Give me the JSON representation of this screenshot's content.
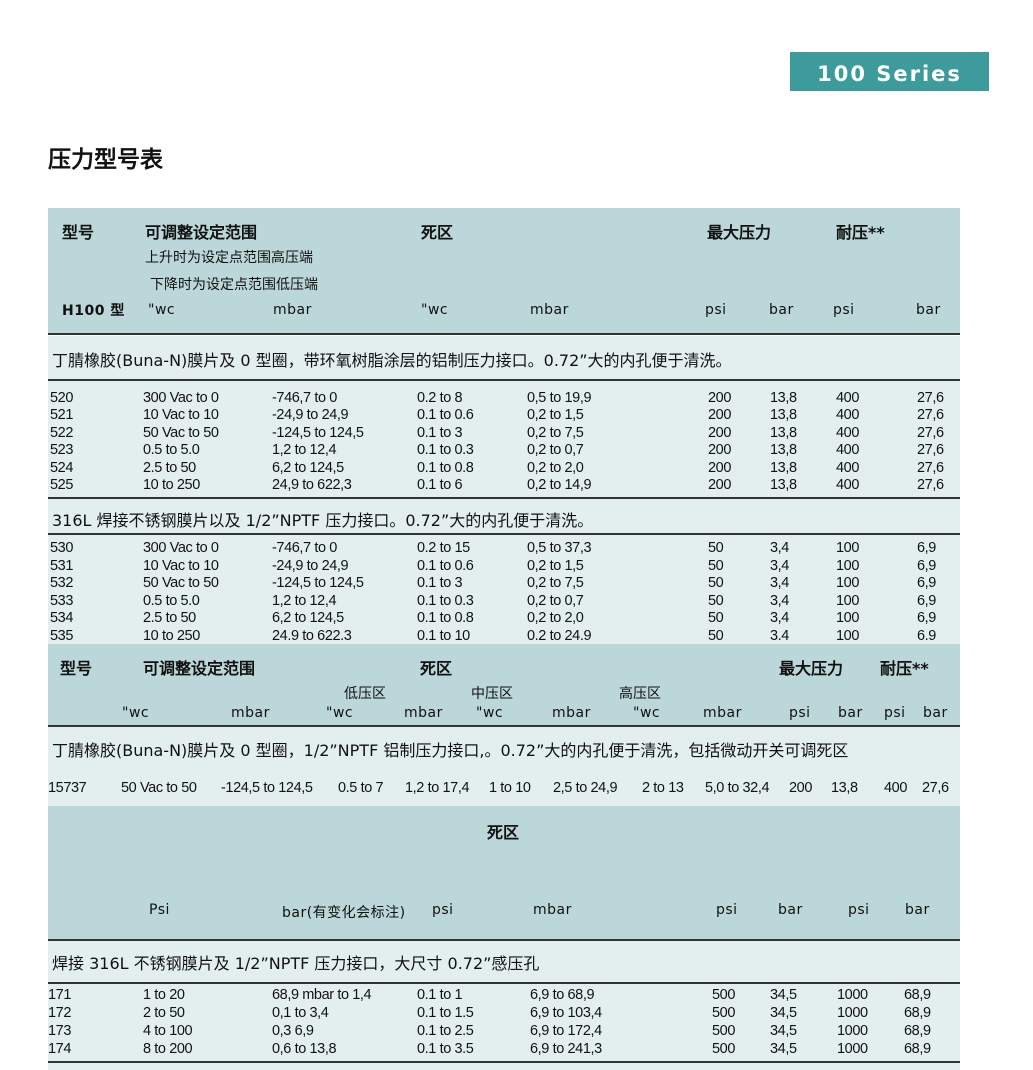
{
  "badge": "100 Series",
  "title": "压力型号表",
  "t1": {
    "h_model": "型号",
    "h_range": "可调整设定范围",
    "h_range_sub1": "上升时为设定点范围高压端",
    "h_range_sub2": "下降时为设定点范围低压端",
    "h_deadband": "死区",
    "h_maxp": "最大压力",
    "h_proof": "耐压**",
    "units": [
      "H100 型",
      "\"wc",
      "mbar",
      "\"wc",
      "mbar",
      "psi",
      "bar",
      "psi",
      "bar"
    ],
    "desc1": "丁腈橡胶(Buna-N)膜片及 0 型圈，带环氧树脂涂层的铝制压力接口。0.72”大的内孔便于清洗。",
    "rows1": [
      [
        "520",
        "300 Vac to 0",
        "-746,7 to 0",
        "0.2 to 8",
        "0,5 to 19,9",
        "200",
        "13,8",
        "400",
        "27,6"
      ],
      [
        "521",
        "10 Vac to 10",
        "-24,9 to 24,9",
        "0.1 to 0.6",
        "0,2 to 1,5",
        "200",
        "13,8",
        "400",
        "27,6"
      ],
      [
        "522",
        "50 Vac to 50",
        "-124,5 to 124,5",
        "0.1 to 3",
        "0,2 to 7,5",
        "200",
        "13,8",
        "400",
        "27,6"
      ],
      [
        "523",
        "0.5 to 5.0",
        "1,2 to 12,4",
        "0.1 to 0.3",
        "0,2 to 0,7",
        "200",
        "13,8",
        "400",
        "27,6"
      ],
      [
        "524",
        "2.5 to 50",
        "6,2 to 124,5",
        "0.1 to 0.8",
        "0,2 to 2,0",
        "200",
        "13,8",
        "400",
        "27,6"
      ],
      [
        "525",
        "10 to 250",
        "24,9 to 622,3",
        "0.1 to 6",
        "0,2 to 14,9",
        "200",
        "13,8",
        "400",
        "27,6"
      ]
    ],
    "desc2": "316L 焊接不锈钢膜片以及 1/2”NPTF 压力接口。0.72”大的内孔便于清洗。",
    "rows2": [
      [
        "530",
        "300 Vac to 0",
        "-746,7 to 0",
        "0.2 to 15",
        "0,5 to 37,3",
        "50",
        "3,4",
        "100",
        "6,9"
      ],
      [
        "531",
        "10 Vac to 10",
        "-24,9 to 24,9",
        "0.1 to 0.6",
        "0,2 to 1,5",
        "50",
        "3,4",
        "100",
        "6,9"
      ],
      [
        "532",
        "50 Vac to 50",
        "-124,5 to 124,5",
        "0.1 to 3",
        "0,2 to 7,5",
        "50",
        "3,4",
        "100",
        "6,9"
      ],
      [
        "533",
        " 0.5 to 5.0",
        "1,2 to 12,4",
        "0.1 to 0.3",
        "0,2 to 0,7",
        "50",
        "3,4",
        "100",
        "6,9"
      ],
      [
        "534",
        "2.5 to 50",
        "6,2 to 124,5",
        "0.1 to 0.8",
        "0,2 to 2,0",
        "50",
        "3,4",
        "100",
        "6,9"
      ],
      [
        "535",
        "10 to 250",
        "24.9 to 622.3",
        "0.1 to 10",
        "0.2 to 24.9",
        "50",
        "3.4",
        "100",
        "6.9"
      ]
    ]
  },
  "t2": {
    "h_model": "型号",
    "h_range": "可调整设定范围",
    "h_deadband": "死区",
    "h_maxp": "最大压力",
    "h_proof": "耐压**",
    "zones": [
      "低压区",
      "中压区",
      "高压区"
    ],
    "units": [
      "\"wc",
      "mbar",
      "\"wc",
      "mbar",
      "\"wc",
      "mbar",
      "\"wc",
      "mbar",
      "psi",
      "bar",
      "psi",
      "bar"
    ],
    "desc": "丁腈橡胶(Buna-N)膜片及 0 型圈，1/2”NPTF 铝制压力接口,。0.72”大的内孔便于清洗，包括微动开关可调死区",
    "rows": [
      [
        "15737",
        "50 Vac to 50",
        "-124,5 to 124,5",
        "0.5 to 7",
        "1,2 to 17,4",
        "1 to 10",
        "2,5 to 24,9",
        "2 to 13",
        "5,0 to 32,4",
        "200",
        "13,8",
        "400",
        "27,6"
      ]
    ]
  },
  "t3": {
    "h_deadband": "死区",
    "units": [
      "Psi",
      "bar(有变化会标注)",
      "psi",
      "mbar",
      "psi",
      "bar",
      "psi",
      "bar"
    ],
    "desc": "焊接 316L 不锈钢膜片及 1/2”NPTF 压力接口，大尺寸 0.72”感压孔",
    "rows": [
      [
        "171",
        "1 to 20",
        "68,9 mbar to 1,4",
        "0.1 to 1",
        "6,9 to 68,9",
        "500",
        "34,5",
        "1000",
        "68,9"
      ],
      [
        "172",
        "2 to 50",
        "0,1 to 3,4",
        "0.1 to 1.5",
        "6,9 to 103,4",
        "500",
        "34,5",
        "1000",
        "68,9"
      ],
      [
        "173",
        "4 to 100",
        "0,3 6,9",
        "0.1 to 2.5",
        "6,9 to 172,4",
        "500",
        "34,5",
        "1000",
        "68,9"
      ],
      [
        "174",
        "8 to 200",
        "0,6 to 13,8",
        "0.1 to 3.5",
        "6,9 to 241,3",
        "500",
        "34,5",
        "1000",
        "68,9"
      ]
    ]
  }
}
